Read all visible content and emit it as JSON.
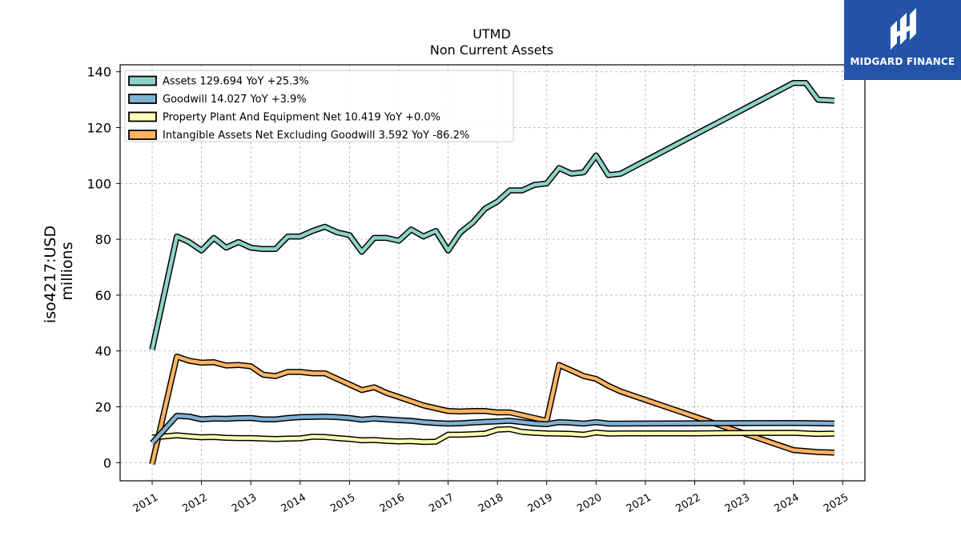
{
  "chart_data": {
    "type": "line",
    "title": "UTMD",
    "subtitle": "Non Current  Assets",
    "ylabel_line1": "iso4217:USD",
    "ylabel_line2": "millions",
    "ylim": [
      -6.5,
      142.5
    ],
    "yticks": [
      0,
      20,
      40,
      60,
      80,
      100,
      120,
      140
    ],
    "xlim": [
      2010.35,
      2025.45
    ],
    "xticks": [
      "2011",
      "2012",
      "2013",
      "2014",
      "2015",
      "2016",
      "2017",
      "2018",
      "2019",
      "2020",
      "2021",
      "2022",
      "2023",
      "2024",
      "2025"
    ],
    "grid": true,
    "legend_position": "top-left",
    "series": [
      {
        "name": "Assets  129.694 YoY +25.3%",
        "color": "#8dd3c7",
        "points": [
          [
            2011.0,
            40.5
          ],
          [
            2011.5,
            81.0
          ],
          [
            2011.75,
            79.0
          ],
          [
            2012.0,
            76.0
          ],
          [
            2012.25,
            80.5
          ],
          [
            2012.5,
            77.0
          ],
          [
            2012.75,
            79.0
          ],
          [
            2013.0,
            77.0
          ],
          [
            2013.25,
            76.5
          ],
          [
            2013.5,
            76.5
          ],
          [
            2013.75,
            81.0
          ],
          [
            2014.0,
            81.0
          ],
          [
            2014.25,
            83.0
          ],
          [
            2014.5,
            84.5
          ],
          [
            2014.75,
            82.5
          ],
          [
            2015.0,
            81.5
          ],
          [
            2015.25,
            75.5
          ],
          [
            2015.5,
            80.5
          ],
          [
            2015.75,
            80.5
          ],
          [
            2016.0,
            79.5
          ],
          [
            2016.25,
            83.5
          ],
          [
            2016.5,
            81.0
          ],
          [
            2016.75,
            83.0
          ],
          [
            2017.0,
            76.0
          ],
          [
            2017.25,
            82.5
          ],
          [
            2017.5,
            86.0
          ],
          [
            2017.75,
            91.0
          ],
          [
            2018.0,
            93.5
          ],
          [
            2018.25,
            97.5
          ],
          [
            2018.5,
            97.5
          ],
          [
            2018.75,
            99.5
          ],
          [
            2019.0,
            100.0
          ],
          [
            2019.25,
            105.5
          ],
          [
            2019.5,
            103.5
          ],
          [
            2019.75,
            104.0
          ],
          [
            2020.0,
            110.0
          ],
          [
            2020.25,
            103.0
          ],
          [
            2020.5,
            103.5
          ],
          [
            2024.0,
            136.0
          ],
          [
            2024.25,
            136.0
          ],
          [
            2024.5,
            130.0
          ],
          [
            2024.83,
            129.694
          ]
        ]
      },
      {
        "name": "Goodwill  14.027 YoY +3.9%",
        "color": "#80b1d3",
        "points": [
          [
            2011.0,
            7.0
          ],
          [
            2011.5,
            16.8
          ],
          [
            2011.75,
            16.5
          ],
          [
            2012.0,
            15.5
          ],
          [
            2012.25,
            15.8
          ],
          [
            2012.5,
            15.7
          ],
          [
            2012.75,
            15.9
          ],
          [
            2013.0,
            16.0
          ],
          [
            2013.25,
            15.5
          ],
          [
            2013.5,
            15.5
          ],
          [
            2013.75,
            16.0
          ],
          [
            2014.0,
            16.3
          ],
          [
            2014.25,
            16.4
          ],
          [
            2014.5,
            16.5
          ],
          [
            2014.75,
            16.3
          ],
          [
            2015.0,
            16.0
          ],
          [
            2015.25,
            15.4
          ],
          [
            2015.5,
            15.8
          ],
          [
            2015.75,
            15.5
          ],
          [
            2016.0,
            15.2
          ],
          [
            2016.25,
            15.0
          ],
          [
            2016.5,
            14.5
          ],
          [
            2016.75,
            14.2
          ],
          [
            2017.0,
            14.0
          ],
          [
            2017.25,
            14.1
          ],
          [
            2017.5,
            14.4
          ],
          [
            2017.75,
            14.6
          ],
          [
            2018.0,
            14.8
          ],
          [
            2018.25,
            15.0
          ],
          [
            2018.5,
            14.5
          ],
          [
            2018.75,
            14.0
          ],
          [
            2019.0,
            13.8
          ],
          [
            2019.25,
            14.5
          ],
          [
            2019.5,
            14.3
          ],
          [
            2019.75,
            14.0
          ],
          [
            2020.0,
            14.5
          ],
          [
            2020.25,
            14.0
          ],
          [
            2020.5,
            14.0
          ],
          [
            2022.0,
            14.1
          ],
          [
            2024.0,
            14.2
          ],
          [
            2024.5,
            14.1
          ],
          [
            2024.83,
            14.027
          ]
        ]
      },
      {
        "name": "Property Plant And Equipment Net  10.419 YoY +0.0%",
        "color": "#ffffb3",
        "points": [
          [
            2011.0,
            9.0
          ],
          [
            2011.5,
            9.8
          ],
          [
            2011.75,
            9.4
          ],
          [
            2012.0,
            9.1
          ],
          [
            2012.25,
            9.2
          ],
          [
            2012.5,
            8.9
          ],
          [
            2012.75,
            8.8
          ],
          [
            2013.0,
            8.8
          ],
          [
            2013.25,
            8.6
          ],
          [
            2013.5,
            8.5
          ],
          [
            2013.75,
            8.6
          ],
          [
            2014.0,
            8.7
          ],
          [
            2014.25,
            9.3
          ],
          [
            2014.5,
            9.2
          ],
          [
            2014.75,
            8.8
          ],
          [
            2015.0,
            8.5
          ],
          [
            2015.25,
            8.0
          ],
          [
            2015.5,
            8.1
          ],
          [
            2015.75,
            7.8
          ],
          [
            2016.0,
            7.6
          ],
          [
            2016.25,
            7.7
          ],
          [
            2016.5,
            7.4
          ],
          [
            2016.75,
            7.5
          ],
          [
            2017.0,
            10.0
          ],
          [
            2017.25,
            10.0
          ],
          [
            2017.5,
            10.2
          ],
          [
            2017.75,
            10.4
          ],
          [
            2018.0,
            11.8
          ],
          [
            2018.25,
            12.0
          ],
          [
            2018.5,
            11.0
          ],
          [
            2018.75,
            10.7
          ],
          [
            2019.0,
            10.5
          ],
          [
            2019.25,
            10.4
          ],
          [
            2019.5,
            10.3
          ],
          [
            2019.75,
            10.0
          ],
          [
            2020.0,
            10.8
          ],
          [
            2020.25,
            10.4
          ],
          [
            2020.5,
            10.5
          ],
          [
            2022.0,
            10.5
          ],
          [
            2023.0,
            10.6
          ],
          [
            2024.0,
            10.7
          ],
          [
            2024.25,
            10.5
          ],
          [
            2024.5,
            10.3
          ],
          [
            2024.83,
            10.419
          ]
        ]
      },
      {
        "name": "Intangible Assets Net Excluding Goodwill  3.592 YoY -86.2%",
        "color": "#fdb462",
        "points": [
          [
            2011.0,
            -0.5
          ],
          [
            2011.5,
            38.0
          ],
          [
            2011.75,
            36.5
          ],
          [
            2012.0,
            35.8
          ],
          [
            2012.25,
            36.0
          ],
          [
            2012.5,
            34.8
          ],
          [
            2012.75,
            35.0
          ],
          [
            2013.0,
            34.5
          ],
          [
            2013.25,
            31.5
          ],
          [
            2013.5,
            31.0
          ],
          [
            2013.75,
            32.5
          ],
          [
            2014.0,
            32.5
          ],
          [
            2014.25,
            32.0
          ],
          [
            2014.5,
            32.0
          ],
          [
            2014.75,
            30.0
          ],
          [
            2015.0,
            28.0
          ],
          [
            2015.25,
            26.0
          ],
          [
            2015.5,
            27.0
          ],
          [
            2015.75,
            25.0
          ],
          [
            2016.0,
            23.5
          ],
          [
            2016.25,
            22.0
          ],
          [
            2016.5,
            20.5
          ],
          [
            2016.75,
            19.5
          ],
          [
            2017.0,
            18.5
          ],
          [
            2017.25,
            18.3
          ],
          [
            2017.5,
            18.5
          ],
          [
            2017.75,
            18.5
          ],
          [
            2018.0,
            18.0
          ],
          [
            2018.25,
            18.0
          ],
          [
            2018.5,
            17.0
          ],
          [
            2018.75,
            16.0
          ],
          [
            2019.0,
            15.0
          ],
          [
            2019.25,
            35.0
          ],
          [
            2019.5,
            33.0
          ],
          [
            2019.75,
            31.0
          ],
          [
            2020.0,
            30.0
          ],
          [
            2020.25,
            27.5
          ],
          [
            2020.5,
            25.5
          ],
          [
            2021.0,
            22.5
          ],
          [
            2022.0,
            16.5
          ],
          [
            2023.0,
            10.5
          ],
          [
            2024.0,
            4.5
          ],
          [
            2024.5,
            3.8
          ],
          [
            2024.83,
            3.592
          ]
        ]
      }
    ]
  },
  "logo": {
    "text": "MIDGARD FINANCE"
  }
}
